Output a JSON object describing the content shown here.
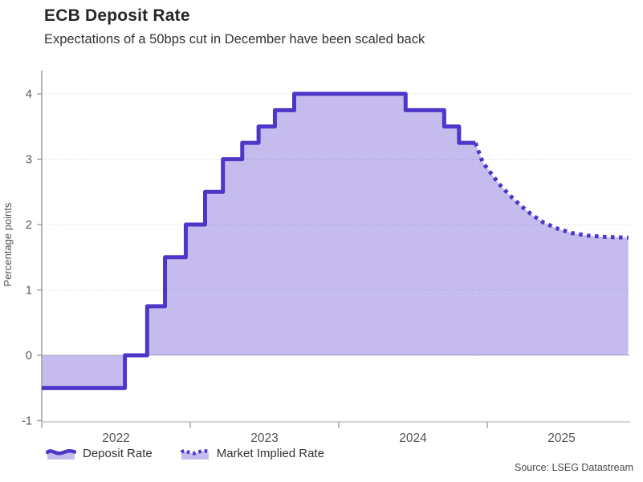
{
  "header": {
    "title": "ECB Deposit Rate",
    "subtitle": "Expectations of a 50bps cut in December have been scaled back"
  },
  "legend": {
    "items": [
      {
        "label": "Deposit Rate",
        "style": "solid"
      },
      {
        "label": "Market Implied Rate",
        "style": "dotted"
      }
    ]
  },
  "source": "Source: LSEG Datastream",
  "colors": {
    "line": "#4f35c8",
    "fill": "rgba(79,53,200,0.33)",
    "grid": "#dadada",
    "zero_line": "#cccccc",
    "axis_y": "#9a9a9a",
    "axis_x": "#c4c4c4",
    "tick": "#999999",
    "axis_text": "#555555"
  },
  "chart_data": {
    "type": "area",
    "title": "ECB Deposit Rate",
    "subtitle": "Expectations of a 50bps cut in December have been scaled back",
    "xlabel": "",
    "ylabel": "Percentage points",
    "ylim": [
      -1,
      4
    ],
    "yticks": [
      -1,
      0,
      1,
      2,
      3,
      4
    ],
    "xlim": [
      2022.0,
      2025.96
    ],
    "xticks": [
      2022,
      2023,
      2024,
      2025
    ],
    "baseline": 0,
    "grid": "horizontal-dotted",
    "legend_position": "bottom-left",
    "series": [
      {
        "name": "Deposit Rate",
        "style": "step-solid",
        "points": [
          [
            2022.0,
            -0.5
          ],
          [
            2022.56,
            0.0
          ],
          [
            2022.71,
            0.75
          ],
          [
            2022.83,
            1.5
          ],
          [
            2022.97,
            2.0
          ],
          [
            2023.1,
            2.5
          ],
          [
            2023.22,
            3.0
          ],
          [
            2023.35,
            3.25
          ],
          [
            2023.46,
            3.5
          ],
          [
            2023.57,
            3.75
          ],
          [
            2023.7,
            4.0
          ],
          [
            2024.45,
            3.75
          ],
          [
            2024.71,
            3.5
          ],
          [
            2024.81,
            3.25
          ],
          [
            2024.92,
            3.25
          ]
        ]
      },
      {
        "name": "Market Implied Rate",
        "style": "line-dotted",
        "points": [
          [
            2024.92,
            3.25
          ],
          [
            2024.97,
            2.95
          ],
          [
            2025.02,
            2.8
          ],
          [
            2025.08,
            2.62
          ],
          [
            2025.15,
            2.45
          ],
          [
            2025.22,
            2.3
          ],
          [
            2025.3,
            2.15
          ],
          [
            2025.38,
            2.03
          ],
          [
            2025.47,
            1.94
          ],
          [
            2025.57,
            1.87
          ],
          [
            2025.68,
            1.83
          ],
          [
            2025.8,
            1.81
          ],
          [
            2025.95,
            1.8
          ]
        ]
      }
    ]
  }
}
